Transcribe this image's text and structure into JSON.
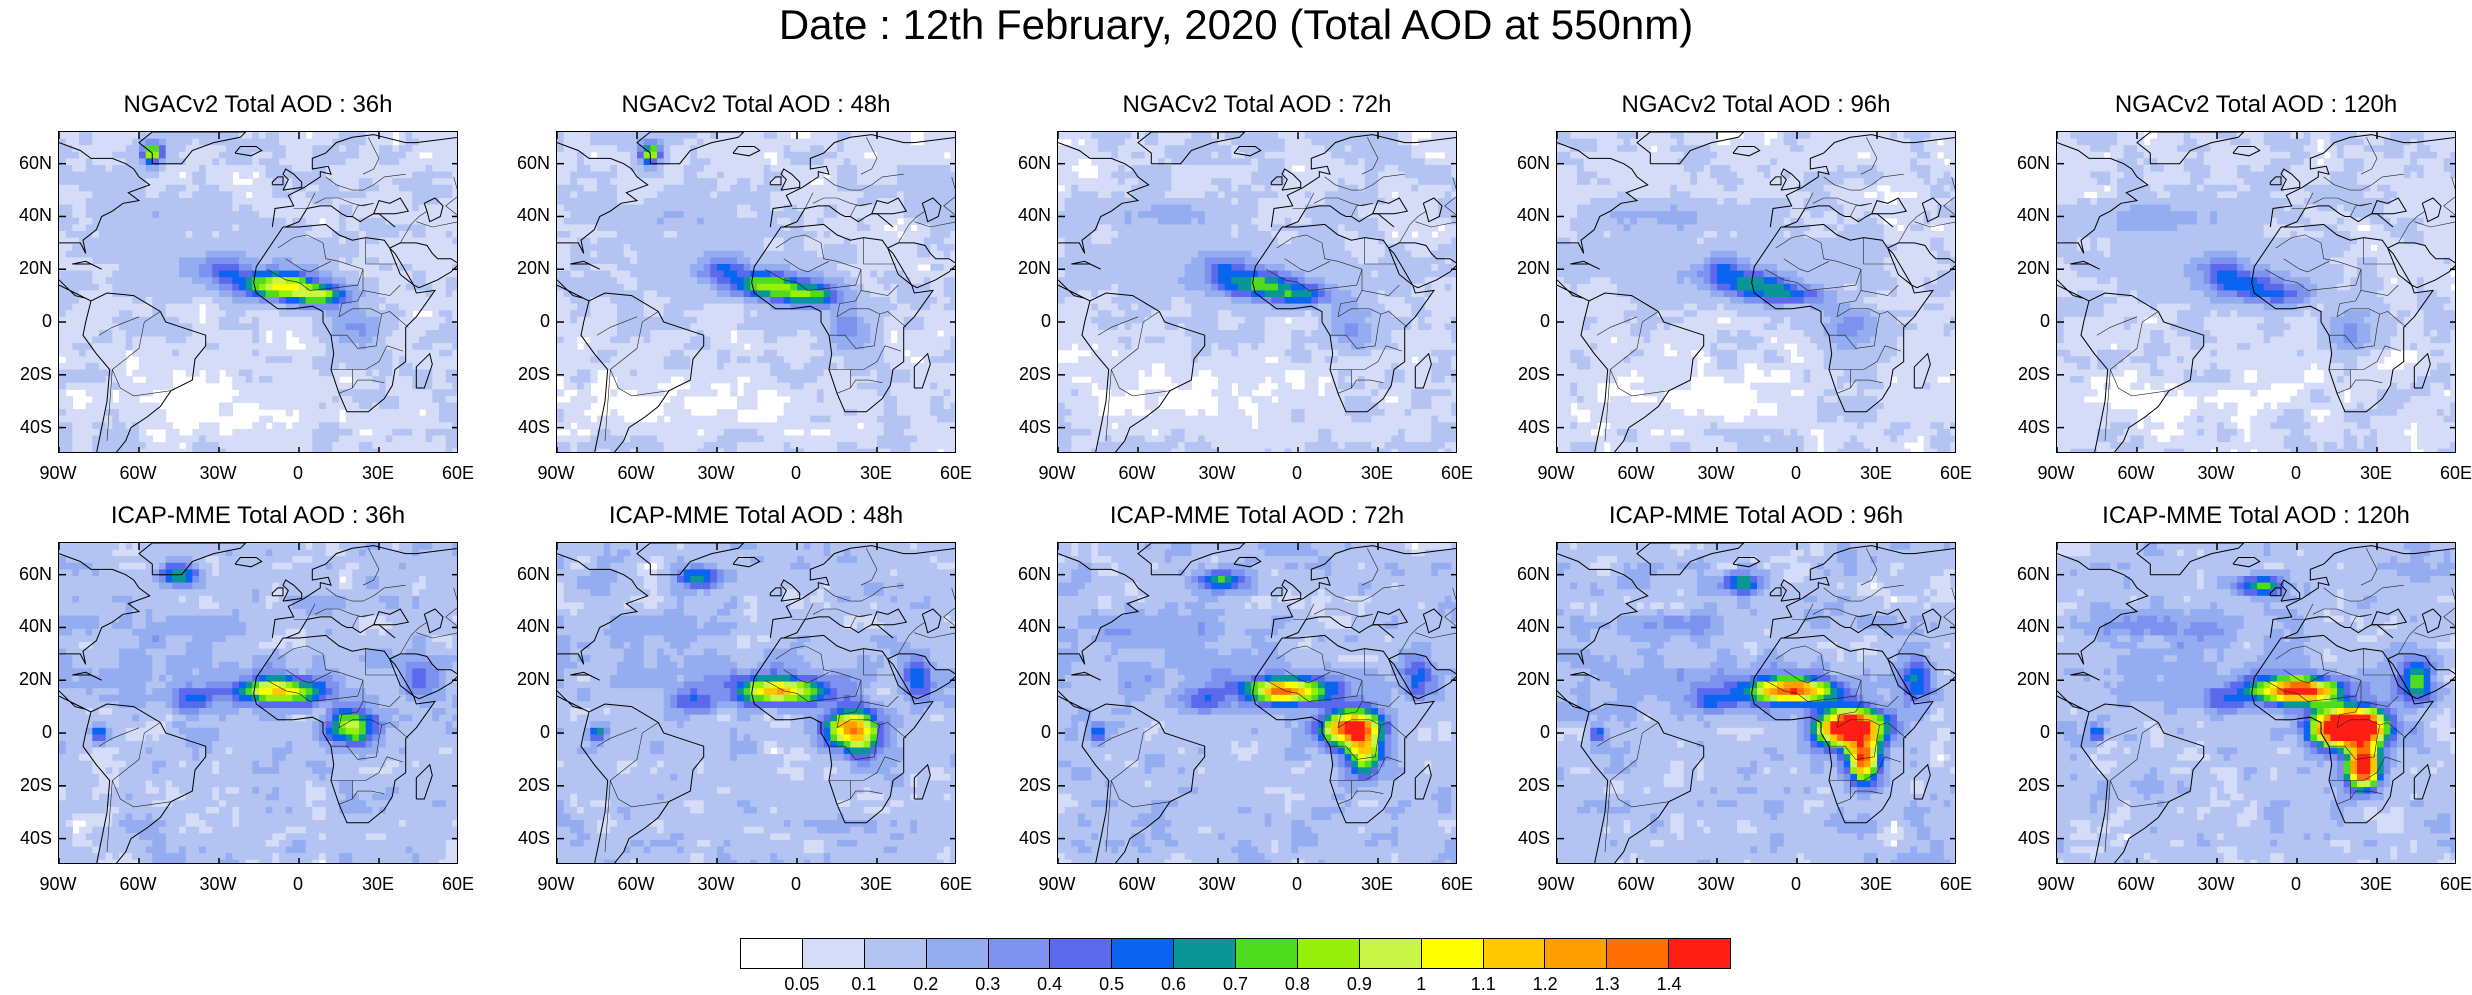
{
  "title": "Date : 12th February, 2020 (Total AOD at 550nm)",
  "lat_ticks": [
    "60N",
    "40N",
    "20N",
    "0",
    "20S",
    "40S"
  ],
  "lon_ticks": [
    "90W",
    "60W",
    "30W",
    "0",
    "30E",
    "60E"
  ],
  "rows": [
    {
      "model": "NGACv2",
      "panels": [
        {
          "title": "NGACv2 Total AOD : 36h"
        },
        {
          "title": "NGACv2 Total AOD : 48h"
        },
        {
          "title": "NGACv2 Total AOD : 72h"
        },
        {
          "title": "NGACv2 Total AOD : 96h"
        },
        {
          "title": "NGACv2 Total AOD : 120h"
        }
      ]
    },
    {
      "model": "ICAP-MME",
      "panels": [
        {
          "title": "ICAP-MME Total AOD : 36h"
        },
        {
          "title": "ICAP-MME Total AOD : 48h"
        },
        {
          "title": "ICAP-MME Total AOD : 72h"
        },
        {
          "title": "ICAP-MME Total AOD : 96h"
        },
        {
          "title": "ICAP-MME Total AOD : 120h"
        }
      ]
    }
  ],
  "colorbar": {
    "colors": [
      "#ffffff",
      "#d4dcf7",
      "#b3c4f2",
      "#94acf0",
      "#7d92ee",
      "#5b69ec",
      "#0a64f0",
      "#0a9696",
      "#50dc1e",
      "#96f00a",
      "#c8f546",
      "#ffff00",
      "#ffc800",
      "#ffa000",
      "#ff6e00",
      "#ff1e14"
    ],
    "labels": [
      "0.05",
      "0.1",
      "0.2",
      "0.3",
      "0.4",
      "0.5",
      "0.6",
      "0.7",
      "0.8",
      "0.9",
      "1",
      "1.1",
      "1.2",
      "1.3",
      "1.4"
    ]
  }
}
